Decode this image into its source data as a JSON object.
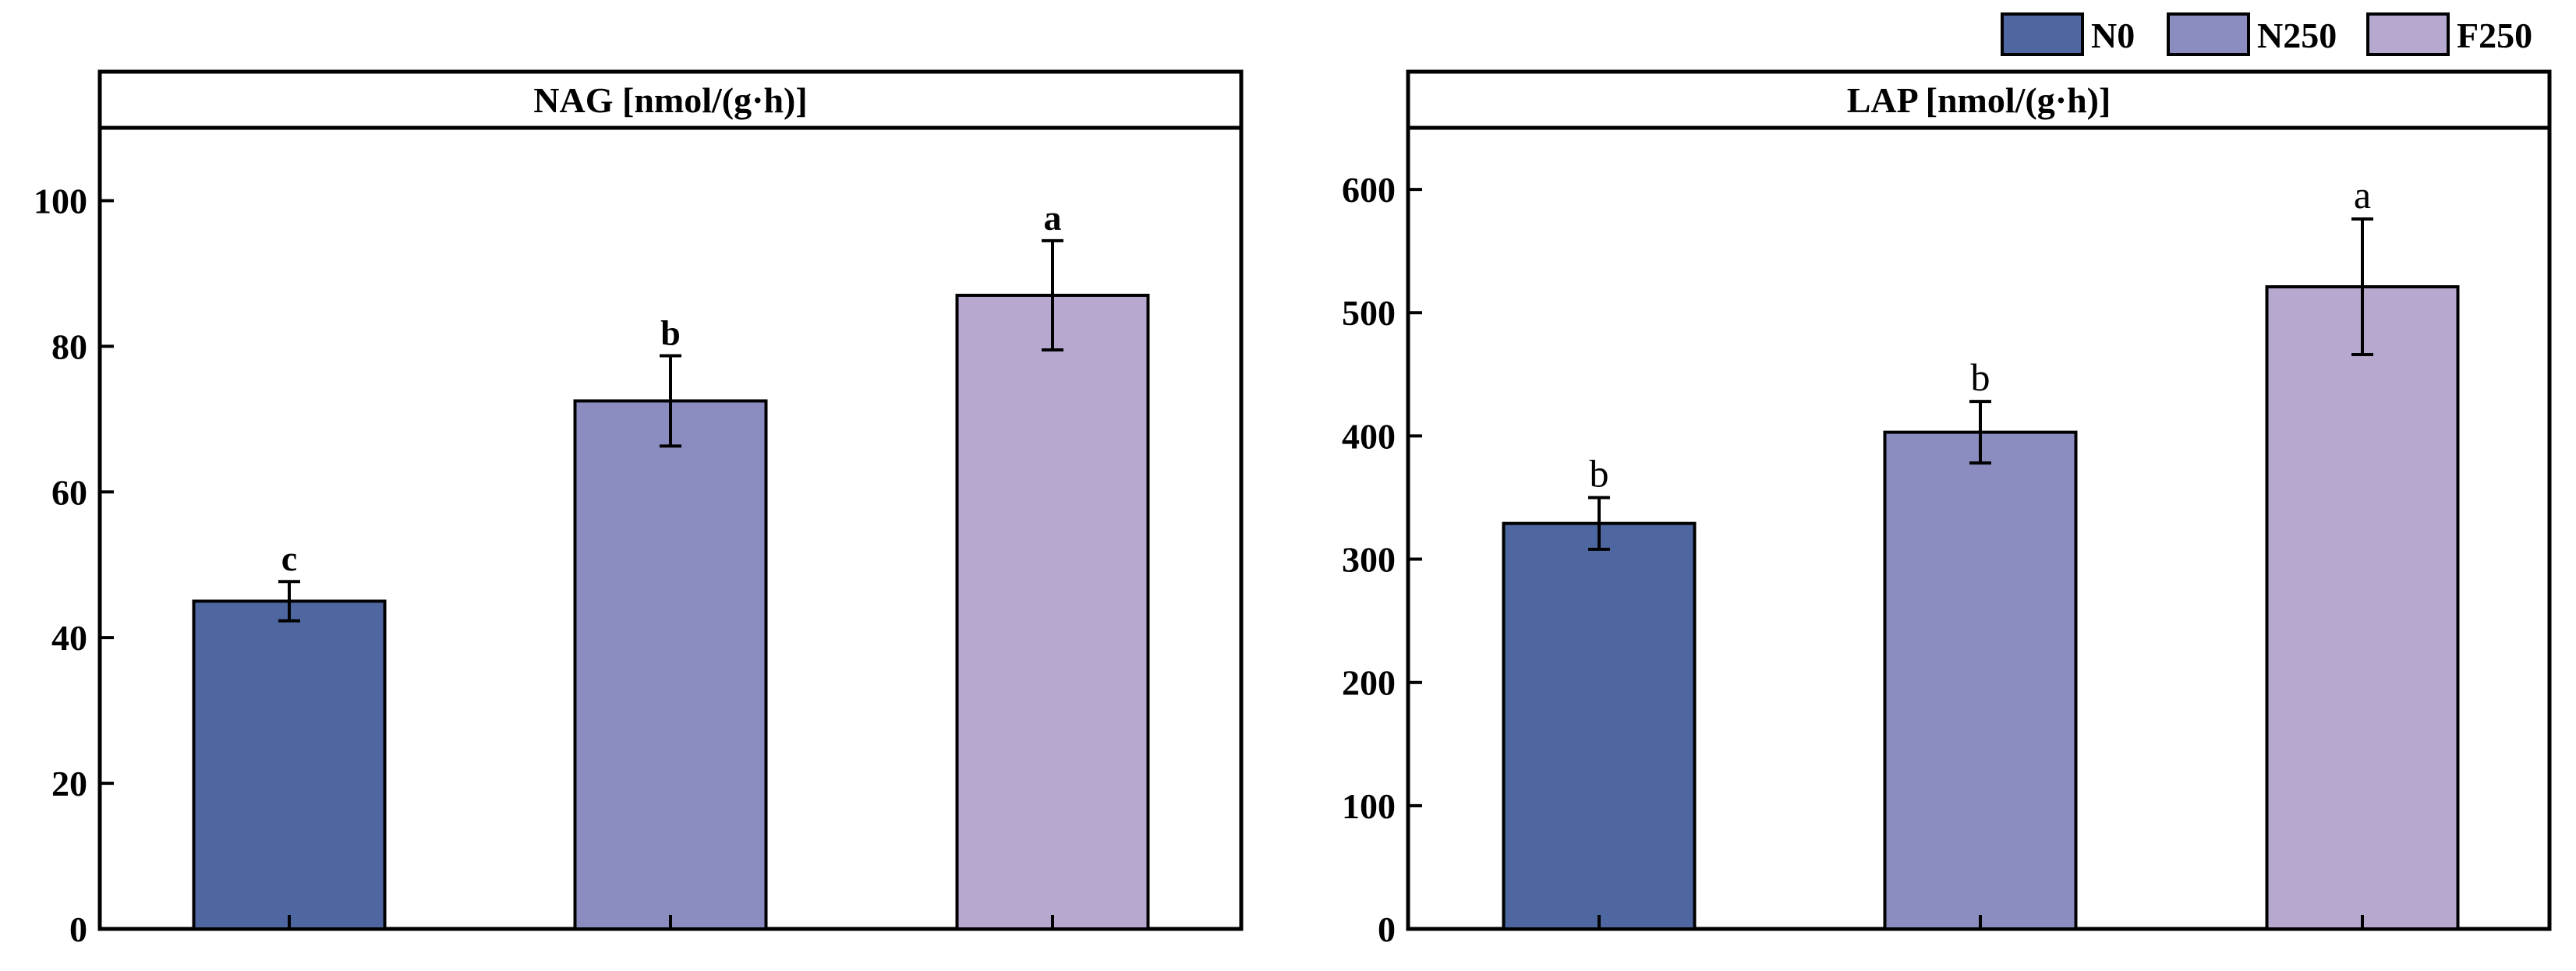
{
  "legend": {
    "placement": "top-right",
    "items": [
      {
        "label": "N0",
        "color": "#4f67a0"
      },
      {
        "label": "N250",
        "color": "#8b8cbf"
      },
      {
        "label": "F250",
        "color": "#b7a8d0"
      }
    ]
  },
  "chart_data": [
    {
      "type": "bar",
      "title": "NAG [nmol/(g·h)]",
      "categories": [
        "N0",
        "N250",
        "F250"
      ],
      "values": [
        45,
        72.5,
        87
      ],
      "errors": [
        2.7,
        6.2,
        7.5
      ],
      "significance": [
        "c",
        "b",
        "a"
      ],
      "significance_weight": "bold",
      "ylim": [
        0,
        110
      ],
      "yticks": [
        0,
        20,
        40,
        60,
        80,
        100
      ],
      "xlabel": "",
      "ylabel": "",
      "grid": false
    },
    {
      "type": "bar",
      "title": "LAP [nmol/(g·h)]",
      "categories": [
        "N0",
        "N250",
        "F250"
      ],
      "values": [
        329,
        403,
        521
      ],
      "errors": [
        21,
        25,
        55
      ],
      "significance": [
        "b",
        "b",
        "a"
      ],
      "significance_weight": "normal",
      "ylim": [
        0,
        650
      ],
      "yticks": [
        0,
        100,
        200,
        300,
        400,
        500,
        600
      ],
      "xlabel": "",
      "ylabel": "",
      "grid": false
    }
  ]
}
